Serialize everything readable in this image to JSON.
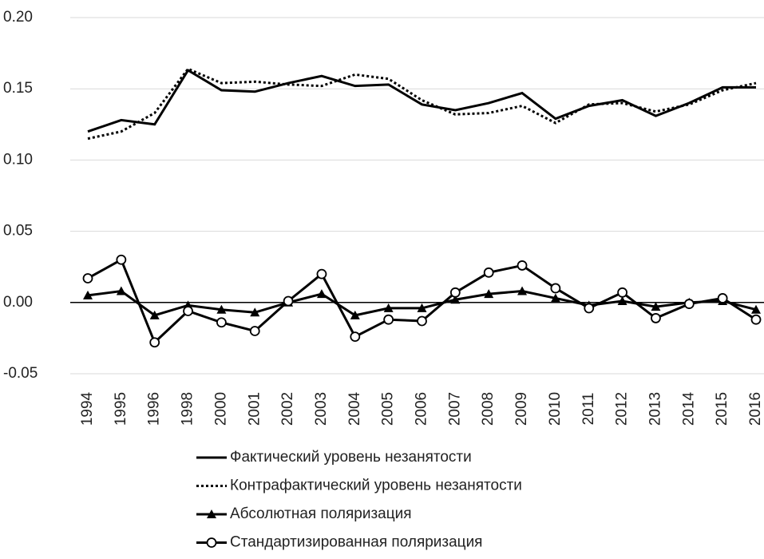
{
  "chart_data": {
    "type": "line",
    "categories": [
      "1994",
      "1995",
      "1996",
      "1998",
      "2000",
      "2001",
      "2002",
      "2003",
      "2004",
      "2005",
      "2006",
      "2007",
      "2008",
      "2009",
      "2010",
      "2011",
      "2012",
      "2013",
      "2014",
      "2015",
      "2016"
    ],
    "ylim": [
      -0.05,
      0.2
    ],
    "yticks": [
      {
        "value": -0.05,
        "label": "-0.05"
      },
      {
        "value": 0,
        "label": "0.00"
      },
      {
        "value": 0.05,
        "label": "0.05"
      },
      {
        "value": 0.1,
        "label": "0.10"
      },
      {
        "value": 0.15,
        "label": "0.15"
      },
      {
        "value": 0.2,
        "label": "0.20"
      }
    ],
    "grid": true,
    "legend": "bottom",
    "series": [
      {
        "name": "Фактический уровень незанятости",
        "color": "#000000",
        "dash": false,
        "marker": "none",
        "values": [
          0.12,
          0.128,
          0.125,
          0.163,
          0.149,
          0.148,
          0.154,
          0.159,
          0.152,
          0.153,
          0.139,
          0.135,
          0.14,
          0.147,
          0.129,
          0.138,
          0.142,
          0.131,
          0.14,
          0.151,
          0.151
        ]
      },
      {
        "name": "Контрафактический уровень незанятости",
        "color": "#000000",
        "dash": true,
        "marker": "none",
        "values": [
          0.115,
          0.12,
          0.133,
          0.164,
          0.154,
          0.155,
          0.153,
          0.152,
          0.16,
          0.157,
          0.142,
          0.132,
          0.133,
          0.138,
          0.126,
          0.139,
          0.14,
          0.134,
          0.139,
          0.149,
          0.154
        ]
      },
      {
        "name": "Абсолютная поляризация",
        "color": "#000000",
        "dash": false,
        "marker": "triangle",
        "values": [
          0.005,
          0.008,
          -0.009,
          -0.002,
          -0.005,
          -0.007,
          0.0,
          0.006,
          -0.009,
          -0.004,
          -0.004,
          0.002,
          0.006,
          0.008,
          0.003,
          -0.002,
          0.001,
          -0.003,
          0.0,
          0.001,
          -0.005
        ]
      },
      {
        "name": "Стандартизированная поляризация",
        "color": "#000000",
        "dash": false,
        "marker": "circle",
        "values": [
          0.017,
          0.03,
          -0.028,
          -0.006,
          -0.014,
          -0.02,
          0.001,
          0.02,
          -0.024,
          -0.012,
          -0.013,
          0.007,
          0.021,
          0.026,
          0.01,
          -0.004,
          0.007,
          -0.011,
          -0.001,
          0.003,
          -0.012
        ]
      }
    ]
  }
}
